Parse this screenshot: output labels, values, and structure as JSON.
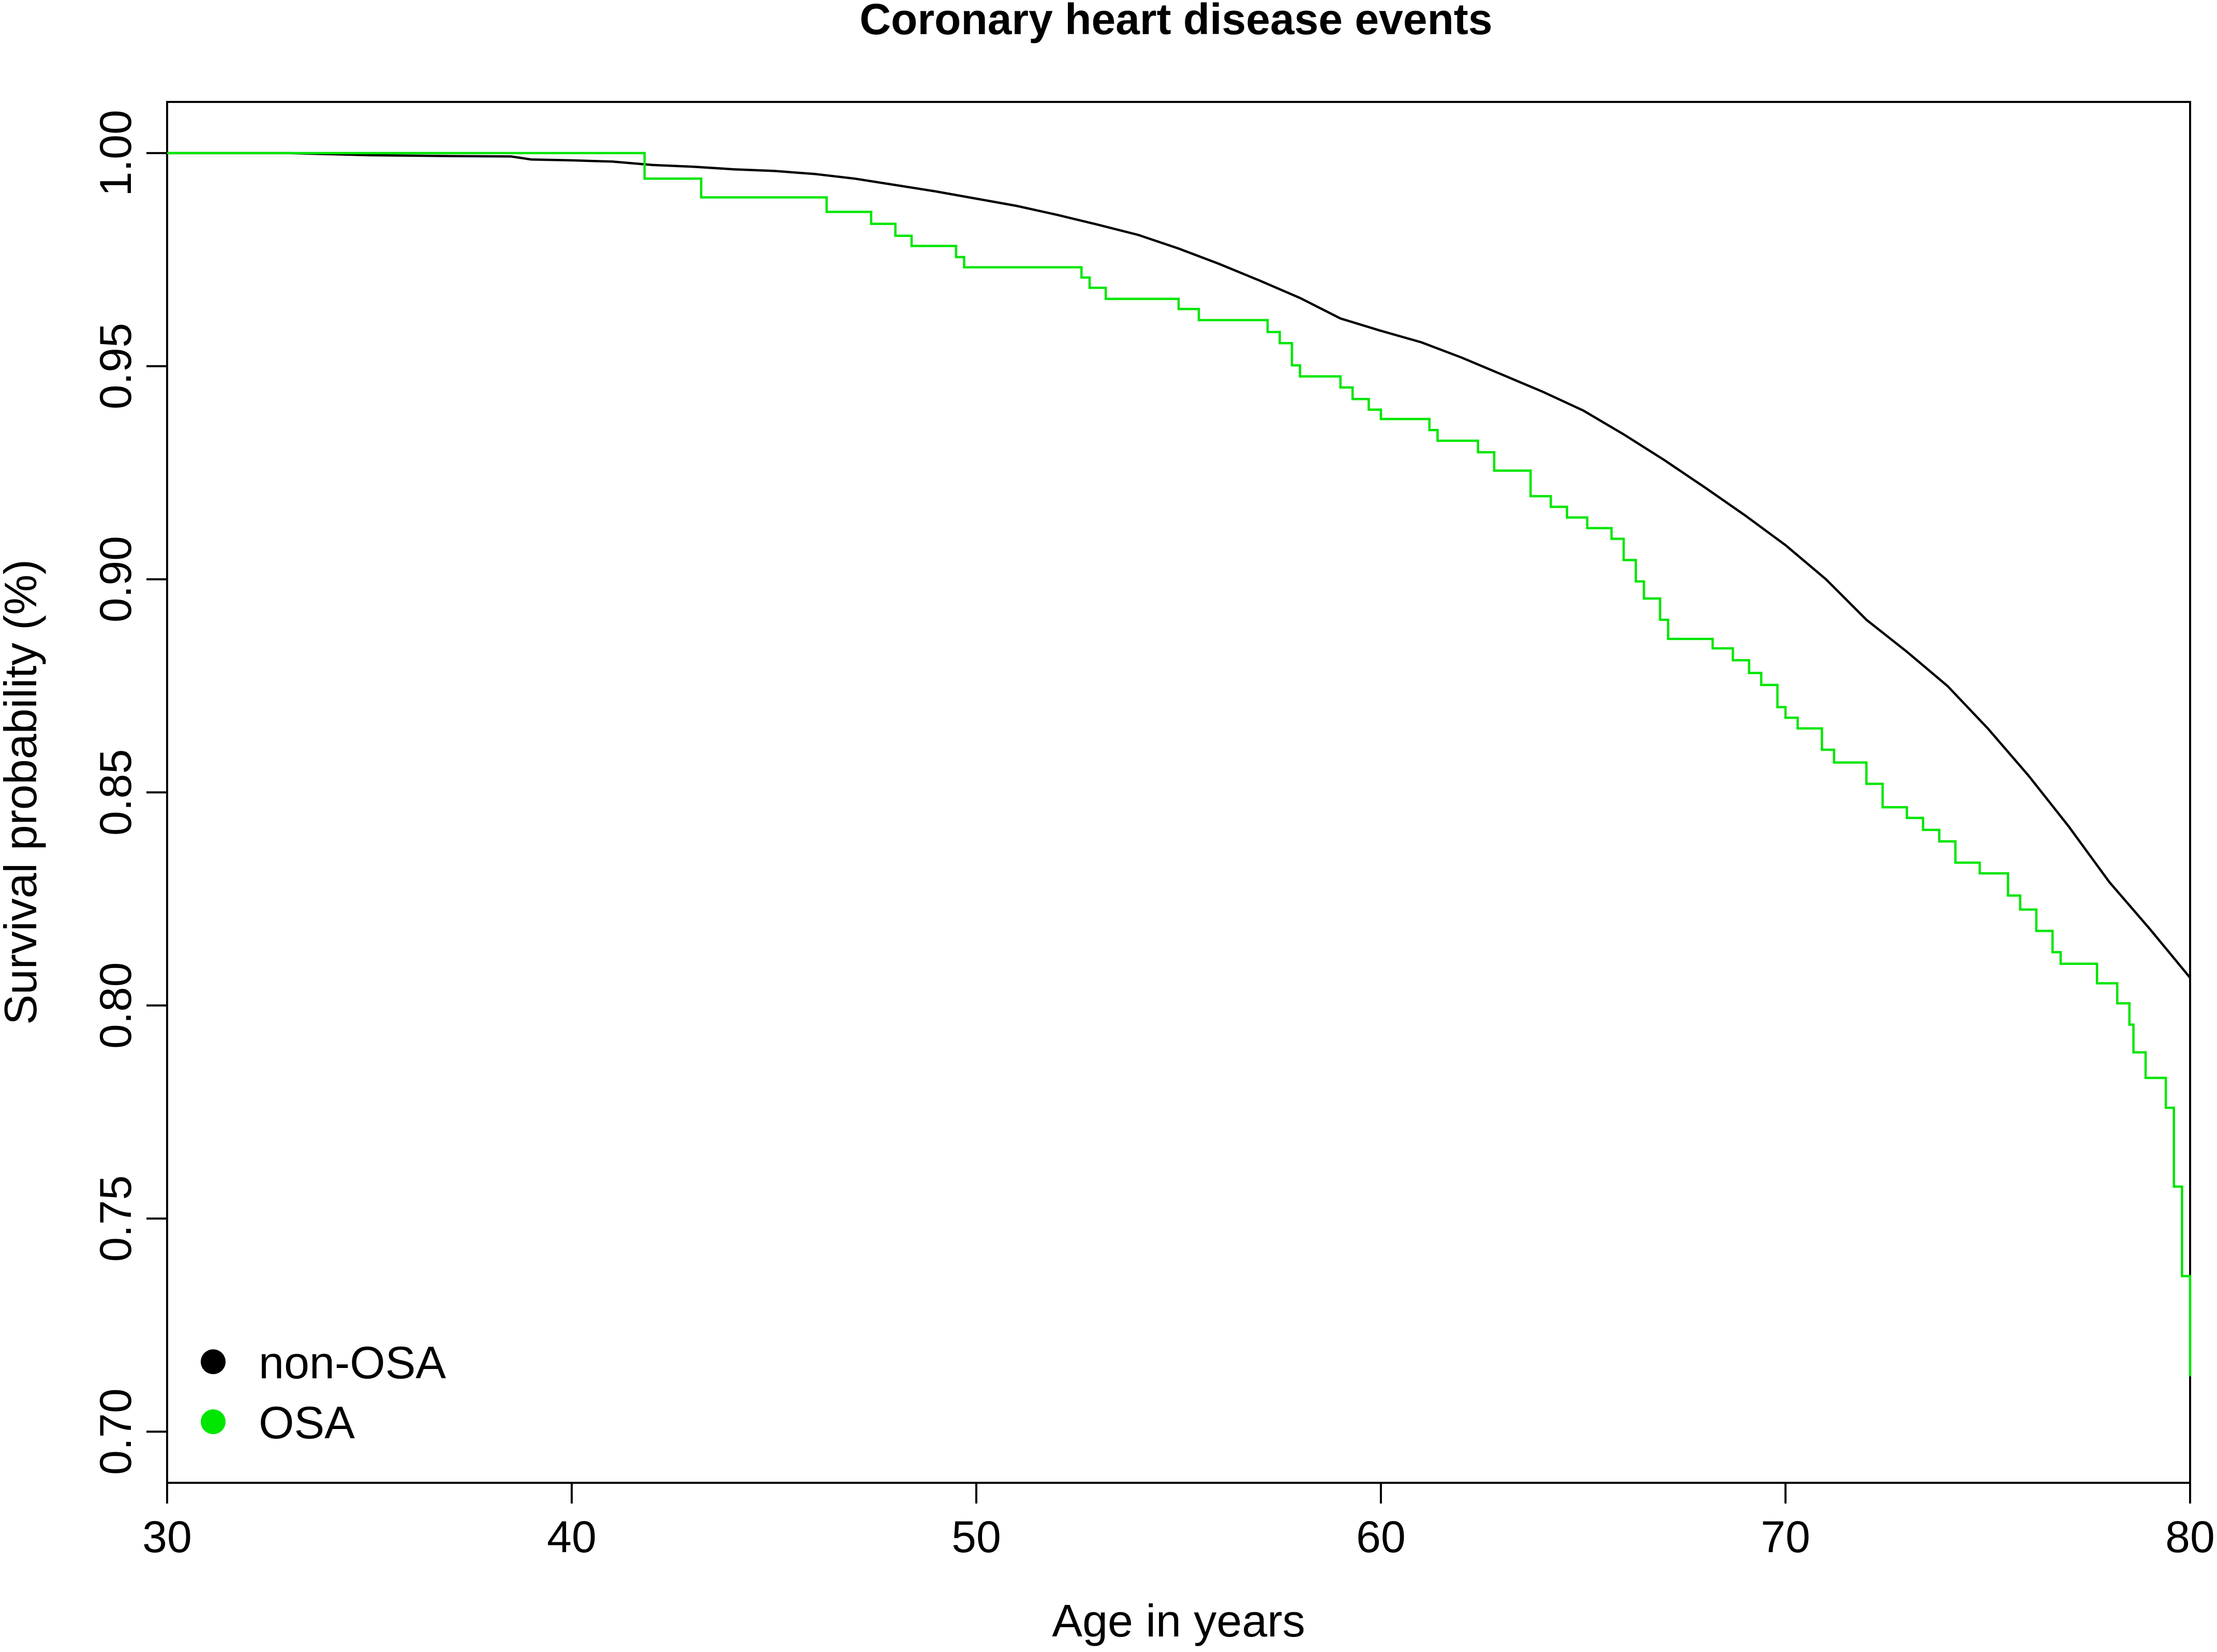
{
  "chart_data": {
    "type": "line",
    "title": "Coronary heart disease events",
    "xlabel": "Age in years",
    "ylabel": "Survival probability (%)",
    "xlim": [
      30,
      80
    ],
    "ylim": [
      0.688,
      1.012
    ],
    "x_ticks": [
      30,
      40,
      50,
      60,
      70,
      80
    ],
    "x_tick_labels": [
      "30",
      "40",
      "50",
      "60",
      "70",
      "80"
    ],
    "y_ticks": [
      0.7,
      0.75,
      0.8,
      0.85,
      0.9,
      0.95,
      1.0
    ],
    "y_tick_labels": [
      "0.70",
      "0.75",
      "0.80",
      "0.85",
      "0.90",
      "0.95",
      "1.00"
    ],
    "grid": false,
    "legend_position": "bottom-left",
    "series": [
      {
        "name": "non-OSA",
        "color": "#000000",
        "step": false,
        "points": [
          [
            30,
            1.0
          ],
          [
            33,
            1.0
          ],
          [
            35,
            0.9995
          ],
          [
            37,
            0.9993
          ],
          [
            38.5,
            0.9992
          ],
          [
            39,
            0.9985
          ],
          [
            40,
            0.9983
          ],
          [
            41,
            0.998
          ],
          [
            42,
            0.9972
          ],
          [
            43,
            0.9968
          ],
          [
            44,
            0.9962
          ],
          [
            45,
            0.9958
          ],
          [
            46,
            0.9951
          ],
          [
            47,
            0.994
          ],
          [
            48,
            0.9925
          ],
          [
            49,
            0.991
          ],
          [
            50,
            0.9893
          ],
          [
            51,
            0.9876
          ],
          [
            52,
            0.9855
          ],
          [
            53,
            0.9832
          ],
          [
            54,
            0.9808
          ],
          [
            55,
            0.9776
          ],
          [
            56,
            0.974
          ],
          [
            57,
            0.9701
          ],
          [
            58,
            0.966
          ],
          [
            59,
            0.9612
          ],
          [
            60,
            0.9583
          ],
          [
            61,
            0.9556
          ],
          [
            62,
            0.952
          ],
          [
            63,
            0.948
          ],
          [
            64,
            0.944
          ],
          [
            65,
            0.9396
          ],
          [
            66,
            0.934
          ],
          [
            67,
            0.928
          ],
          [
            68,
            0.9216
          ],
          [
            69,
            0.915
          ],
          [
            70,
            0.908
          ],
          [
            71,
            0.9
          ],
          [
            72,
            0.8905
          ],
          [
            73,
            0.883
          ],
          [
            74,
            0.875
          ],
          [
            75,
            0.865
          ],
          [
            76,
            0.854
          ],
          [
            77,
            0.842
          ],
          [
            78,
            0.829
          ],
          [
            79,
            0.818
          ],
          [
            80,
            0.8065
          ]
        ]
      },
      {
        "name": "OSA",
        "color": "#00e600",
        "step": true,
        "points": [
          [
            30,
            1.0
          ],
          [
            41.8,
            0.994
          ],
          [
            43.2,
            0.9896
          ],
          [
            46.3,
            0.9862
          ],
          [
            47.4,
            0.9834
          ],
          [
            48.0,
            0.9806
          ],
          [
            48.4,
            0.9782
          ],
          [
            49.5,
            0.9756
          ],
          [
            49.7,
            0.9732
          ],
          [
            52.6,
            0.9708
          ],
          [
            52.8,
            0.9684
          ],
          [
            53.2,
            0.9658
          ],
          [
            55.0,
            0.9634
          ],
          [
            55.5,
            0.9608
          ],
          [
            57.2,
            0.958
          ],
          [
            57.5,
            0.9554
          ],
          [
            57.8,
            0.9502
          ],
          [
            58.0,
            0.9476
          ],
          [
            59.0,
            0.945
          ],
          [
            59.3,
            0.9423
          ],
          [
            59.7,
            0.9398
          ],
          [
            60.0,
            0.9376
          ],
          [
            61.2,
            0.935
          ],
          [
            61.4,
            0.9325
          ],
          [
            62.4,
            0.9298
          ],
          [
            62.8,
            0.9255
          ],
          [
            63.7,
            0.9195
          ],
          [
            64.2,
            0.917
          ],
          [
            64.6,
            0.9145
          ],
          [
            65.1,
            0.912
          ],
          [
            65.7,
            0.9095
          ],
          [
            66.0,
            0.9045
          ],
          [
            66.3,
            0.8995
          ],
          [
            66.5,
            0.8955
          ],
          [
            66.9,
            0.8905
          ],
          [
            67.1,
            0.886
          ],
          [
            68.2,
            0.8838
          ],
          [
            68.7,
            0.881
          ],
          [
            69.1,
            0.878
          ],
          [
            69.4,
            0.8752
          ],
          [
            69.8,
            0.87
          ],
          [
            70.0,
            0.8675
          ],
          [
            70.3,
            0.865
          ],
          [
            70.9,
            0.86
          ],
          [
            71.2,
            0.857
          ],
          [
            72.0,
            0.852
          ],
          [
            72.4,
            0.8465
          ],
          [
            73.0,
            0.844
          ],
          [
            73.4,
            0.8412
          ],
          [
            73.8,
            0.8385
          ],
          [
            74.2,
            0.8335
          ],
          [
            74.8,
            0.831
          ],
          [
            75.5,
            0.8258
          ],
          [
            75.8,
            0.8225
          ],
          [
            76.2,
            0.8175
          ],
          [
            76.6,
            0.8125
          ],
          [
            76.8,
            0.8098
          ],
          [
            77.7,
            0.8052
          ],
          [
            78.2,
            0.8005
          ],
          [
            78.5,
            0.7955
          ],
          [
            78.6,
            0.789
          ],
          [
            78.9,
            0.783
          ],
          [
            79.4,
            0.776
          ],
          [
            79.6,
            0.7575
          ],
          [
            79.8,
            0.7365
          ],
          [
            80.0,
            0.713
          ]
        ]
      }
    ]
  }
}
